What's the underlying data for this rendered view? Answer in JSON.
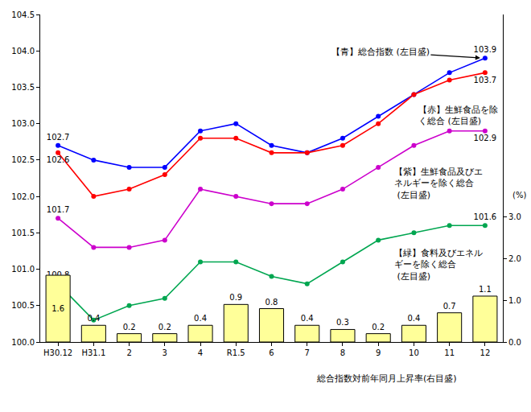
{
  "chart_data": {
    "type": "line",
    "categories": [
      "H30.12",
      "H31.1",
      "2",
      "3",
      "4",
      "R1.5",
      "6",
      "7",
      "8",
      "9",
      "10",
      "11",
      "12"
    ],
    "series": [
      {
        "name": "【青】総合指数 (左目盛)",
        "type": "line",
        "color": "#0000ff",
        "marker": "circle",
        "line_style": "solid",
        "values": [
          102.7,
          102.5,
          102.4,
          102.4,
          102.9,
          103.0,
          102.7,
          102.6,
          102.8,
          103.1,
          103.4,
          103.7,
          103.9
        ],
        "value_labels": [
          "102.7",
          null,
          null,
          null,
          null,
          null,
          null,
          null,
          null,
          null,
          null,
          null,
          "103.9"
        ]
      },
      {
        "name": "【赤】生鮮食品を除く総合 (左目盛)",
        "type": "line",
        "color": "#ff0000",
        "marker": "circle",
        "line_style": "solid",
        "values": [
          102.6,
          102.0,
          102.1,
          102.3,
          102.8,
          102.8,
          102.6,
          102.6,
          102.7,
          103.0,
          103.4,
          103.6,
          103.7
        ],
        "value_labels": [
          "102.6",
          null,
          null,
          null,
          null,
          null,
          null,
          null,
          null,
          null,
          null,
          null,
          "103.7"
        ]
      },
      {
        "name": "【紫】生鮮食品及びエネルギーを除く総合 (左目盛)",
        "type": "line",
        "color": "#cc00cc",
        "marker": "circle",
        "line_style": "solid",
        "values": [
          101.7,
          101.3,
          101.3,
          101.4,
          102.1,
          102.0,
          101.9,
          101.9,
          102.1,
          102.4,
          102.7,
          102.9,
          102.9
        ],
        "value_labels": [
          "101.7",
          null,
          null,
          null,
          null,
          null,
          null,
          null,
          null,
          null,
          null,
          null,
          "102.9"
        ]
      },
      {
        "name": "【緑】食料及びエネルギーを除く総合 (左目盛)",
        "type": "line",
        "color": "#00a650",
        "marker": "circle",
        "line_style": "solid",
        "values": [
          100.8,
          100.3,
          100.5,
          100.6,
          101.1,
          101.1,
          100.9,
          100.8,
          101.1,
          101.4,
          101.5,
          101.6,
          101.6
        ],
        "value_labels": [
          "100.8",
          null,
          null,
          null,
          null,
          null,
          null,
          null,
          null,
          null,
          null,
          null,
          "101.6"
        ]
      },
      {
        "name": "総合指数対前年同月上昇率(右目盛)",
        "type": "bar",
        "axis": "y2",
        "color": "#ffff99",
        "values": [
          1.6,
          0.4,
          0.2,
          0.2,
          0.4,
          0.9,
          0.8,
          0.4,
          0.3,
          0.2,
          0.4,
          0.7,
          1.1
        ]
      }
    ],
    "ylim": [
      100.0,
      104.5
    ],
    "yticks": [
      {
        "value": 100.0,
        "label": "100.0"
      },
      100.5,
      {
        "value": 101.0,
        "label": "101.0"
      },
      101.5,
      {
        "value": 102.0,
        "label": "102.0"
      },
      102.5,
      {
        "value": 103.0,
        "label": "103.0"
      },
      103.5,
      {
        "value": 104.0,
        "label": "104.0"
      },
      104.5
    ],
    "y2lim": [
      0,
      7.85
    ],
    "y2ticks": [
      {
        "value": 0,
        "label": "0.0"
      },
      {
        "value": 1,
        "label": "1.0"
      },
      {
        "value": 2,
        "label": "2.0"
      },
      {
        "value": 3,
        "label": "3.0"
      }
    ],
    "y2label": "(%)",
    "data_labels": true,
    "grid": false
  }
}
